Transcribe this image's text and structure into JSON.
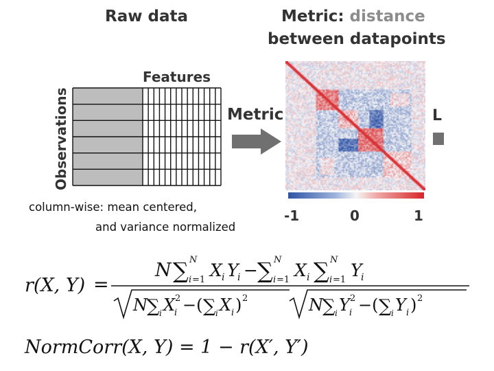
{
  "raw_panel": {
    "title": "Raw data",
    "features_label": "Features",
    "observations_label": "Observations"
  },
  "metric_panel": {
    "title_bold": "Metric:",
    "title_rest": " distance",
    "title_line2": "between datapoints",
    "arrow_label": "Metric",
    "clipped_label": "L"
  },
  "note": {
    "line1": "column-wise: mean centered,",
    "line2": "and variance normalized"
  },
  "colorbar": {
    "ticks": [
      "-1",
      "0",
      "1"
    ],
    "colors": {
      "negative": "#2f53a6",
      "neutral": "#f4f4f4",
      "positive": "#d7262a"
    }
  },
  "formulas": {
    "r_lhs": "r(X, Y)",
    "r_eq": "=",
    "r_numerator": "N ∑ XᵢYᵢ − ∑ Xᵢ ∑ Yᵢ",
    "r_denominator": "√(N∑Xᵢ² − (∑Xᵢ)²) √(N∑Yᵢ² − (∑Yᵢ)²)",
    "sum_upper": "N",
    "sum_lower": "i=1",
    "normcorr": "NormCorr(X, Y) = 1 − r(X′, Y′)"
  }
}
